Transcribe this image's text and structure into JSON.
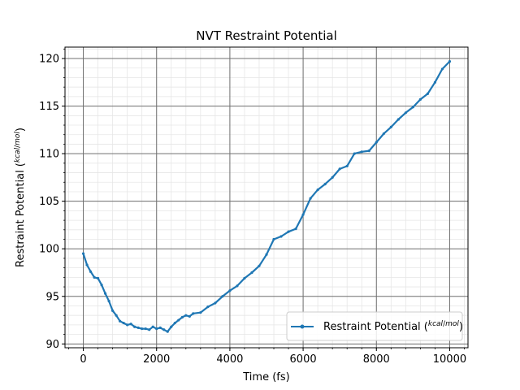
{
  "chart_data": {
    "type": "line",
    "title": "NVT  Restraint Potential",
    "xlabel": "Time (fs)",
    "ylabel": "Restraint Potential (kcal/mol)",
    "ylabel_text": "Restraint Potential (",
    "unit_numerator": "kcal",
    "unit_denominator": "mol",
    "xlim": [
      -500,
      10500
    ],
    "ylim": [
      89.6,
      121.2
    ],
    "xticks": [
      0,
      2000,
      4000,
      6000,
      8000,
      10000
    ],
    "yticks": [
      90,
      95,
      100,
      105,
      110,
      115,
      120
    ],
    "grid": true,
    "minor_grid": true,
    "legend_position": "lower-right",
    "series": [
      {
        "name": "Restraint Potential (kcal/mol)",
        "legend_text": "Restraint Potential (",
        "color": "#1f77b4",
        "x": [
          0,
          100,
          200,
          300,
          400,
          500,
          600,
          700,
          800,
          900,
          1000,
          1100,
          1200,
          1300,
          1400,
          1500,
          1600,
          1700,
          1800,
          1900,
          2000,
          2100,
          2200,
          2300,
          2400,
          2500,
          2600,
          2700,
          2800,
          2900,
          3000,
          3200,
          3400,
          3600,
          3800,
          4000,
          4200,
          4400,
          4600,
          4800,
          5000,
          5200,
          5400,
          5600,
          5800,
          6000,
          6200,
          6400,
          6600,
          6800,
          7000,
          7200,
          7400,
          7600,
          7800,
          8000,
          8200,
          8400,
          8600,
          8800,
          9000,
          9200,
          9400,
          9600,
          9800,
          10000
        ],
        "y": [
          99.5,
          98.3,
          97.6,
          97.0,
          96.9,
          96.2,
          95.3,
          94.5,
          93.5,
          93.0,
          92.4,
          92.2,
          92.0,
          92.1,
          91.8,
          91.7,
          91.6,
          91.6,
          91.5,
          91.8,
          91.6,
          91.7,
          91.5,
          91.3,
          91.8,
          92.2,
          92.5,
          92.8,
          93.0,
          92.9,
          93.2,
          93.3,
          93.9,
          94.3,
          95.0,
          95.6,
          96.1,
          96.9,
          97.5,
          98.2,
          99.4,
          101.0,
          101.3,
          101.8,
          102.1,
          103.6,
          105.3,
          106.2,
          106.8,
          107.5,
          108.4,
          108.7,
          110.0,
          110.2,
          110.3,
          111.2,
          112.1,
          112.8,
          113.6,
          114.3,
          114.9,
          115.7,
          116.3,
          117.5,
          118.9,
          119.7
        ]
      }
    ]
  }
}
